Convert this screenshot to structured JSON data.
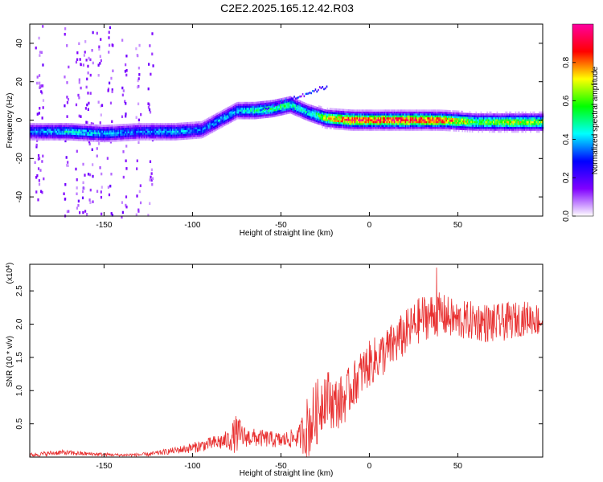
{
  "title": "C2E2.2025.165.12.42.R03",
  "chart_data": [
    {
      "type": "heatmap",
      "xlabel": "Height of straight line (km)",
      "ylabel": "Frequency (Hz)",
      "xlim": [
        -192,
        98
      ],
      "ylim": [
        -50,
        50
      ],
      "x_ticks": [
        -150,
        -100,
        -50,
        0,
        50
      ],
      "y_ticks": [
        -40,
        -20,
        0,
        20,
        40
      ],
      "colorbar": {
        "label": "Normalized spectral amplitude",
        "range": [
          0,
          1
        ],
        "ticks": [
          "0.0",
          "0.2",
          "0.4",
          "0.6",
          "0.8"
        ],
        "tick_values": [
          0,
          0.2,
          0.4,
          0.6,
          0.8
        ],
        "colors": [
          "#ffffff",
          "#8000ff",
          "#0000ff",
          "#00ffff",
          "#00ff00",
          "#ffff00",
          "#ff0000",
          "#ff00a0"
        ]
      },
      "ridge": {
        "description": "dominant Doppler frequency track",
        "x": [
          -192,
          -170,
          -150,
          -130,
          -110,
          -95,
          -85,
          -75,
          -65,
          -55,
          -45,
          -35,
          -25,
          -10,
          0,
          20,
          40,
          60,
          80,
          98
        ],
        "freq": [
          -6,
          -6,
          -7,
          -6,
          -6,
          -5,
          0,
          5,
          5,
          6,
          8,
          4,
          1,
          0,
          0,
          0,
          0,
          -1,
          -1,
          -1
        ],
        "amplitude": [
          0.35,
          0.45,
          0.4,
          0.35,
          0.4,
          0.35,
          0.4,
          0.4,
          0.5,
          0.55,
          0.5,
          0.45,
          0.7,
          0.95,
          0.9,
          0.95,
          0.9,
          0.6,
          0.7,
          0.65
        ]
      }
    },
    {
      "type": "line",
      "xlabel": "Height of straight line (km)",
      "ylabel": "SNR (10 * v/v)",
      "scale_label": "(x10",
      "scale_exponent": "4",
      "xlim": [
        -192,
        98
      ],
      "ylim": [
        0,
        2.9
      ],
      "x_ticks": [
        -150,
        -100,
        -50,
        0,
        50
      ],
      "y_ticks": [
        0.5,
        1.0,
        1.5,
        2.0,
        2.5
      ],
      "y_tick_labels": [
        "0.5",
        "1.0",
        "1.5",
        "2.0",
        "2.5"
      ],
      "series": [
        {
          "name": "SNR",
          "color": "#e83030",
          "x": [
            -192,
            -175,
            -160,
            -140,
            -125,
            -110,
            -100,
            -90,
            -80,
            -75,
            -70,
            -60,
            -50,
            -40,
            -35,
            -30,
            -25,
            -20,
            -15,
            -10,
            -5,
            0,
            10,
            20,
            30,
            40,
            50,
            60,
            70,
            80,
            90,
            98
          ],
          "mean": [
            0.03,
            0.07,
            0.05,
            0.03,
            0.04,
            0.1,
            0.14,
            0.2,
            0.25,
            0.35,
            0.3,
            0.28,
            0.25,
            0.3,
            0.45,
            0.65,
            0.95,
            0.8,
            0.85,
            1.05,
            1.25,
            1.4,
            1.6,
            1.85,
            2.1,
            2.15,
            2.05,
            2.05,
            2.0,
            2.05,
            2.1,
            2.05
          ],
          "noise": [
            0.03,
            0.04,
            0.03,
            0.02,
            0.03,
            0.05,
            0.08,
            0.1,
            0.15,
            0.3,
            0.15,
            0.13,
            0.12,
            0.15,
            0.5,
            0.5,
            0.45,
            0.4,
            0.4,
            0.35,
            0.35,
            0.35,
            0.35,
            0.35,
            0.35,
            0.33,
            0.3,
            0.3,
            0.3,
            0.28,
            0.25,
            0.25
          ],
          "peak": 2.85
        }
      ]
    }
  ]
}
